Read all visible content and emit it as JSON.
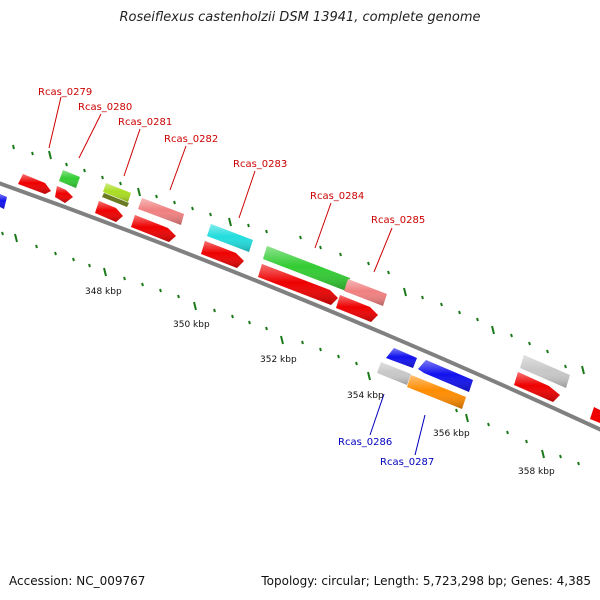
{
  "title": "Roseiflexus castenholzii DSM 13941, complete genome",
  "footer": {
    "accession": "Accession: NC_009767",
    "summary": "Topology: circular; Length: 5,723,298 bp; Genes: 4,385"
  },
  "colors": {
    "backbone": "#808080",
    "forward_label": "#cc0000",
    "reverse_label": "#0000bb",
    "tick": "#1a7a1a"
  },
  "scale_labels": [
    "348 kbp",
    "350 kbp",
    "352 kbp",
    "354 kbp",
    "356 kbp",
    "358 kbp"
  ],
  "gene_labels": [
    {
      "text": "Rcas_0279",
      "strand": "forward"
    },
    {
      "text": "Rcas_0280",
      "strand": "forward"
    },
    {
      "text": "Rcas_0281",
      "strand": "forward"
    },
    {
      "text": "Rcas_0282",
      "strand": "forward"
    },
    {
      "text": "Rcas_0283",
      "strand": "forward"
    },
    {
      "text": "Rcas_0284",
      "strand": "forward"
    },
    {
      "text": "Rcas_0285",
      "strand": "forward"
    },
    {
      "text": "Rcas_0286",
      "strand": "reverse"
    },
    {
      "text": "Rcas_0287",
      "strand": "reverse"
    }
  ]
}
